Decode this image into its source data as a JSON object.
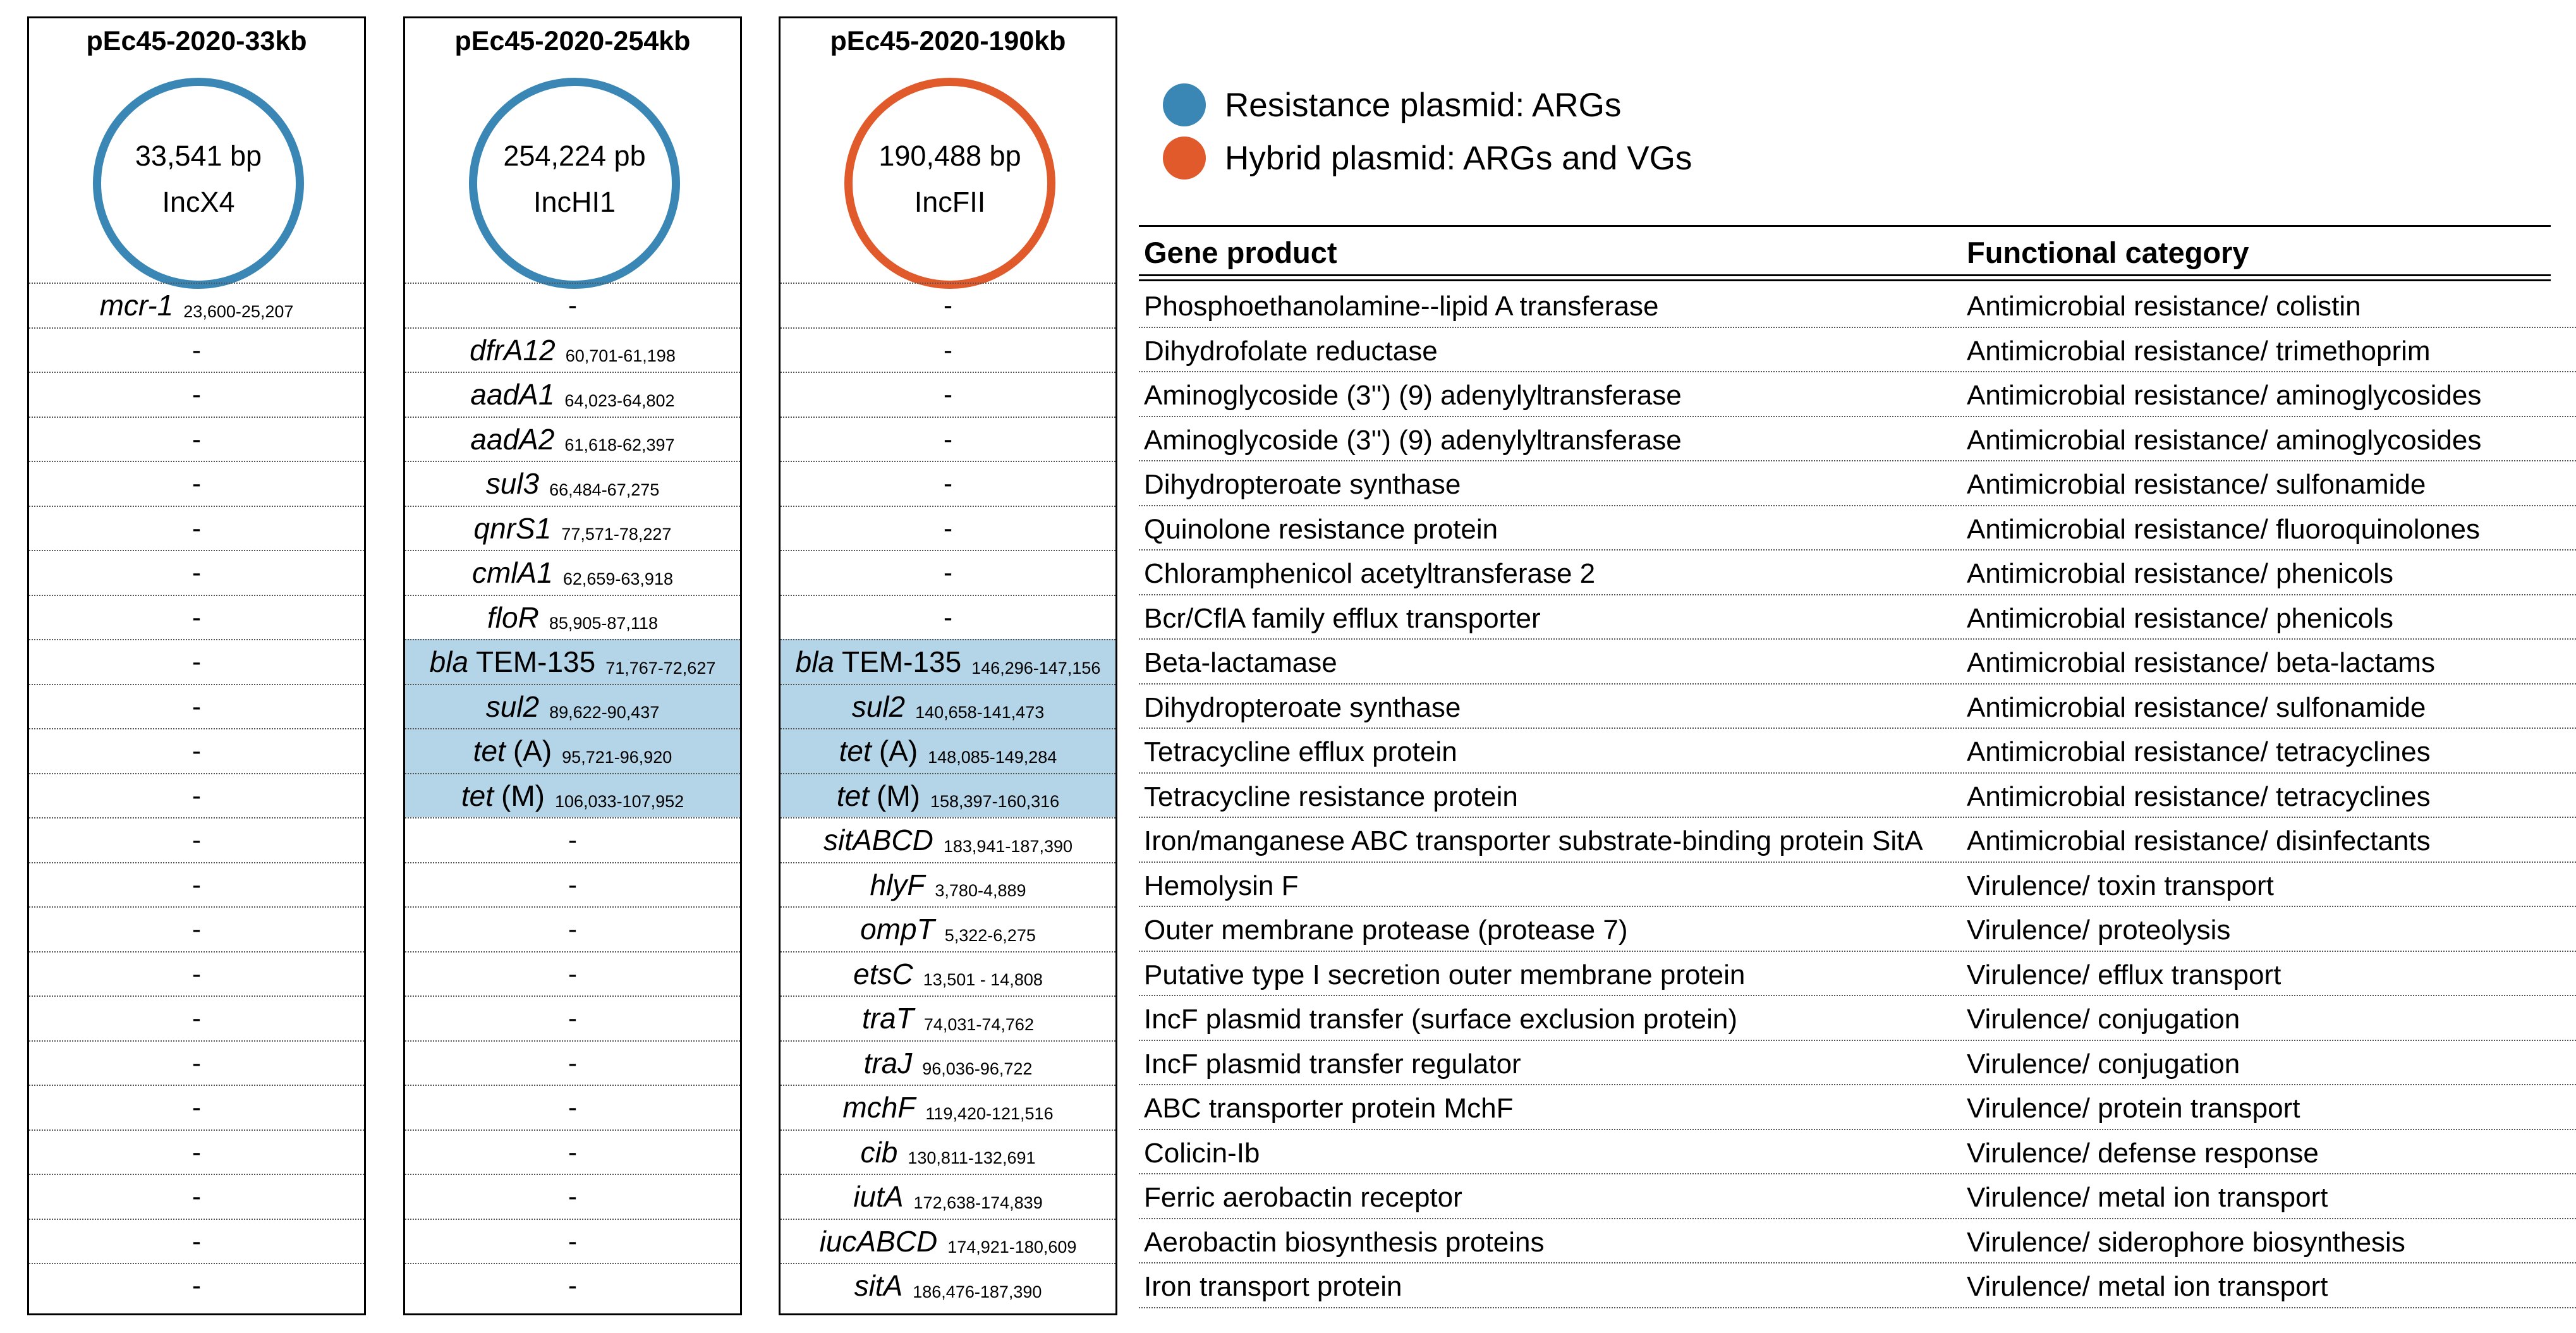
{
  "plasmids": [
    {
      "title": "pEc45-2020-33kb",
      "size": "33,541 bp",
      "inc": "IncX4",
      "ring_color": "#3a87b5"
    },
    {
      "title": "pEc45-2020-254kb",
      "size": "254,224 pb",
      "inc": "IncHI1",
      "ring_color": "#3a87b5"
    },
    {
      "title": "pEc45-2020-190kb",
      "size": "190,488 bp",
      "inc": "IncFII",
      "ring_color": "#e05a2b"
    }
  ],
  "legend": [
    {
      "label": "Resistance plasmid: ARGs",
      "color": "#3a87b5"
    },
    {
      "label": "Hybrid plasmid: ARGs and VGs",
      "color": "#e05a2b"
    }
  ],
  "table": {
    "headers": {
      "product": "Gene product",
      "category": "Functional category"
    },
    "rows": [
      {
        "product": "Phosphoethanolamine--lipid A transferase",
        "category": "Antimicrobial resistance/ colistin"
      },
      {
        "product": "Dihydrofolate reductase",
        "category": "Antimicrobial resistance/ trimethoprim"
      },
      {
        "product": "Aminoglycoside (3'') (9) adenylyltransferase",
        "category": "Antimicrobial resistance/ aminoglycosides"
      },
      {
        "product": "Aminoglycoside (3'') (9) adenylyltransferase",
        "category": "Antimicrobial resistance/ aminoglycosides"
      },
      {
        "product": "Dihydropteroate synthase",
        "category": "Antimicrobial resistance/ sulfonamide"
      },
      {
        "product": "Quinolone resistance protein",
        "category": "Antimicrobial resistance/ fluoroquinolones"
      },
      {
        "product": "Chloramphenicol acetyltransferase 2",
        "category": "Antimicrobial resistance/ phenicols"
      },
      {
        "product": "Bcr/CflA family efflux transporter",
        "category": "Antimicrobial resistance/ phenicols"
      },
      {
        "product": "Beta-lactamase",
        "category": "Antimicrobial resistance/ beta-lactams"
      },
      {
        "product": "Dihydropteroate synthase",
        "category": "Antimicrobial resistance/ sulfonamide"
      },
      {
        "product": "Tetracycline efflux protein",
        "category": "Antimicrobial resistance/ tetracyclines"
      },
      {
        "product": "Tetracycline resistance protein",
        "category": "Antimicrobial resistance/ tetracyclines"
      },
      {
        "product": "Iron/manganese ABC transporter substrate-binding protein SitA",
        "category": "Antimicrobial resistance/ disinfectants"
      },
      {
        "product": "Hemolysin F",
        "category": "Virulence/ toxin transport"
      },
      {
        "product": "Outer membrane protease (protease 7)",
        "category": "Virulence/ proteolysis"
      },
      {
        "product": "Putative type I secretion outer membrane protein",
        "category": "Virulence/ efflux transport"
      },
      {
        "product": "IncF plasmid transfer (surface exclusion protein)",
        "category": "Virulence/ conjugation"
      },
      {
        "product": "IncF plasmid transfer regulator",
        "category": "Virulence/ conjugation"
      },
      {
        "product": "ABC transporter protein MchF",
        "category": "Virulence/ protein transport"
      },
      {
        "product": "Colicin-Ib",
        "category": "Virulence/ defense response"
      },
      {
        "product": "Ferric aerobactin receptor",
        "category": "Virulence/ metal ion transport"
      },
      {
        "product": "Aerobactin biosynthesis proteins",
        "category": "Virulence/ siderophore biosynthesis"
      },
      {
        "product": "Iron transport protein",
        "category": "Virulence/ metal ion transport"
      }
    ]
  },
  "genes": [
    [
      {
        "gene": "mcr-1",
        "coord": "23,600-25,207"
      },
      "-",
      "-"
    ],
    [
      "-",
      {
        "gene": "dfrA12",
        "coord": "60,701-61,198"
      },
      "-"
    ],
    [
      "-",
      {
        "gene": "aadA1",
        "coord": "64,023-64,802"
      },
      "-"
    ],
    [
      "-",
      {
        "gene": "aadA2",
        "coord": "61,618-62,397"
      },
      "-"
    ],
    [
      "-",
      {
        "gene": "sul3",
        "coord": "66,484-67,275"
      },
      "-"
    ],
    [
      "-",
      {
        "gene": "qnrS1",
        "coord": "77,571-78,227"
      },
      "-"
    ],
    [
      "-",
      {
        "gene": "cmlA1",
        "coord": "62,659-63,918"
      },
      "-"
    ],
    [
      "-",
      {
        "gene": "floR",
        "coord": "85,905-87,118"
      },
      "-"
    ],
    [
      "-",
      {
        "pre": "bla",
        "gene": "TEM-135",
        "coord": "71,767-72,627",
        "hl": true
      },
      {
        "pre": "bla",
        "gene": "TEM-135",
        "coord": "146,296-147,156",
        "hl": true
      }
    ],
    [
      "-",
      {
        "gene": "sul2",
        "coord": "89,622-90,437",
        "hl": true
      },
      {
        "gene": "sul2",
        "coord": "140,658-141,473",
        "hl": true
      }
    ],
    [
      "-",
      {
        "pre": "tet",
        "gene": "(A)",
        "coord": "95,721-96,920",
        "hl": true
      },
      {
        "pre": "tet",
        "gene": "(A)",
        "coord": "148,085-149,284",
        "hl": true
      }
    ],
    [
      "-",
      {
        "pre": "tet",
        "gene": "(M)",
        "coord": "106,033-107,952",
        "hl": true
      },
      {
        "pre": "tet",
        "gene": "(M)",
        "coord": "158,397-160,316",
        "hl": true
      }
    ],
    [
      "-",
      "-",
      {
        "gene": "sitABCD",
        "coord": "183,941-187,390"
      }
    ],
    [
      "-",
      "-",
      {
        "gene": "hlyF",
        "coord": "3,780-4,889"
      }
    ],
    [
      "-",
      "-",
      {
        "gene": "ompT",
        "coord": "5,322-6,275"
      }
    ],
    [
      "-",
      "-",
      {
        "gene": "etsC",
        "coord": "13,501 - 14,808"
      }
    ],
    [
      "-",
      "-",
      {
        "gene": "traT",
        "coord": "74,031-74,762"
      }
    ],
    [
      "-",
      "-",
      {
        "gene": "traJ",
        "coord": "96,036-96,722"
      }
    ],
    [
      "-",
      "-",
      {
        "gene": "mchF",
        "coord": "119,420-121,516"
      }
    ],
    [
      "-",
      "-",
      {
        "gene": "cib",
        "coord": "130,811-132,691"
      }
    ],
    [
      "-",
      "-",
      {
        "gene": "iutA",
        "coord": "172,638-174,839"
      }
    ],
    [
      "-",
      "-",
      {
        "gene": "iucABCD",
        "coord": "174,921-180,609"
      }
    ],
    [
      "-",
      "-",
      {
        "gene": "sitA",
        "coord": "186,476-187,390"
      }
    ]
  ]
}
